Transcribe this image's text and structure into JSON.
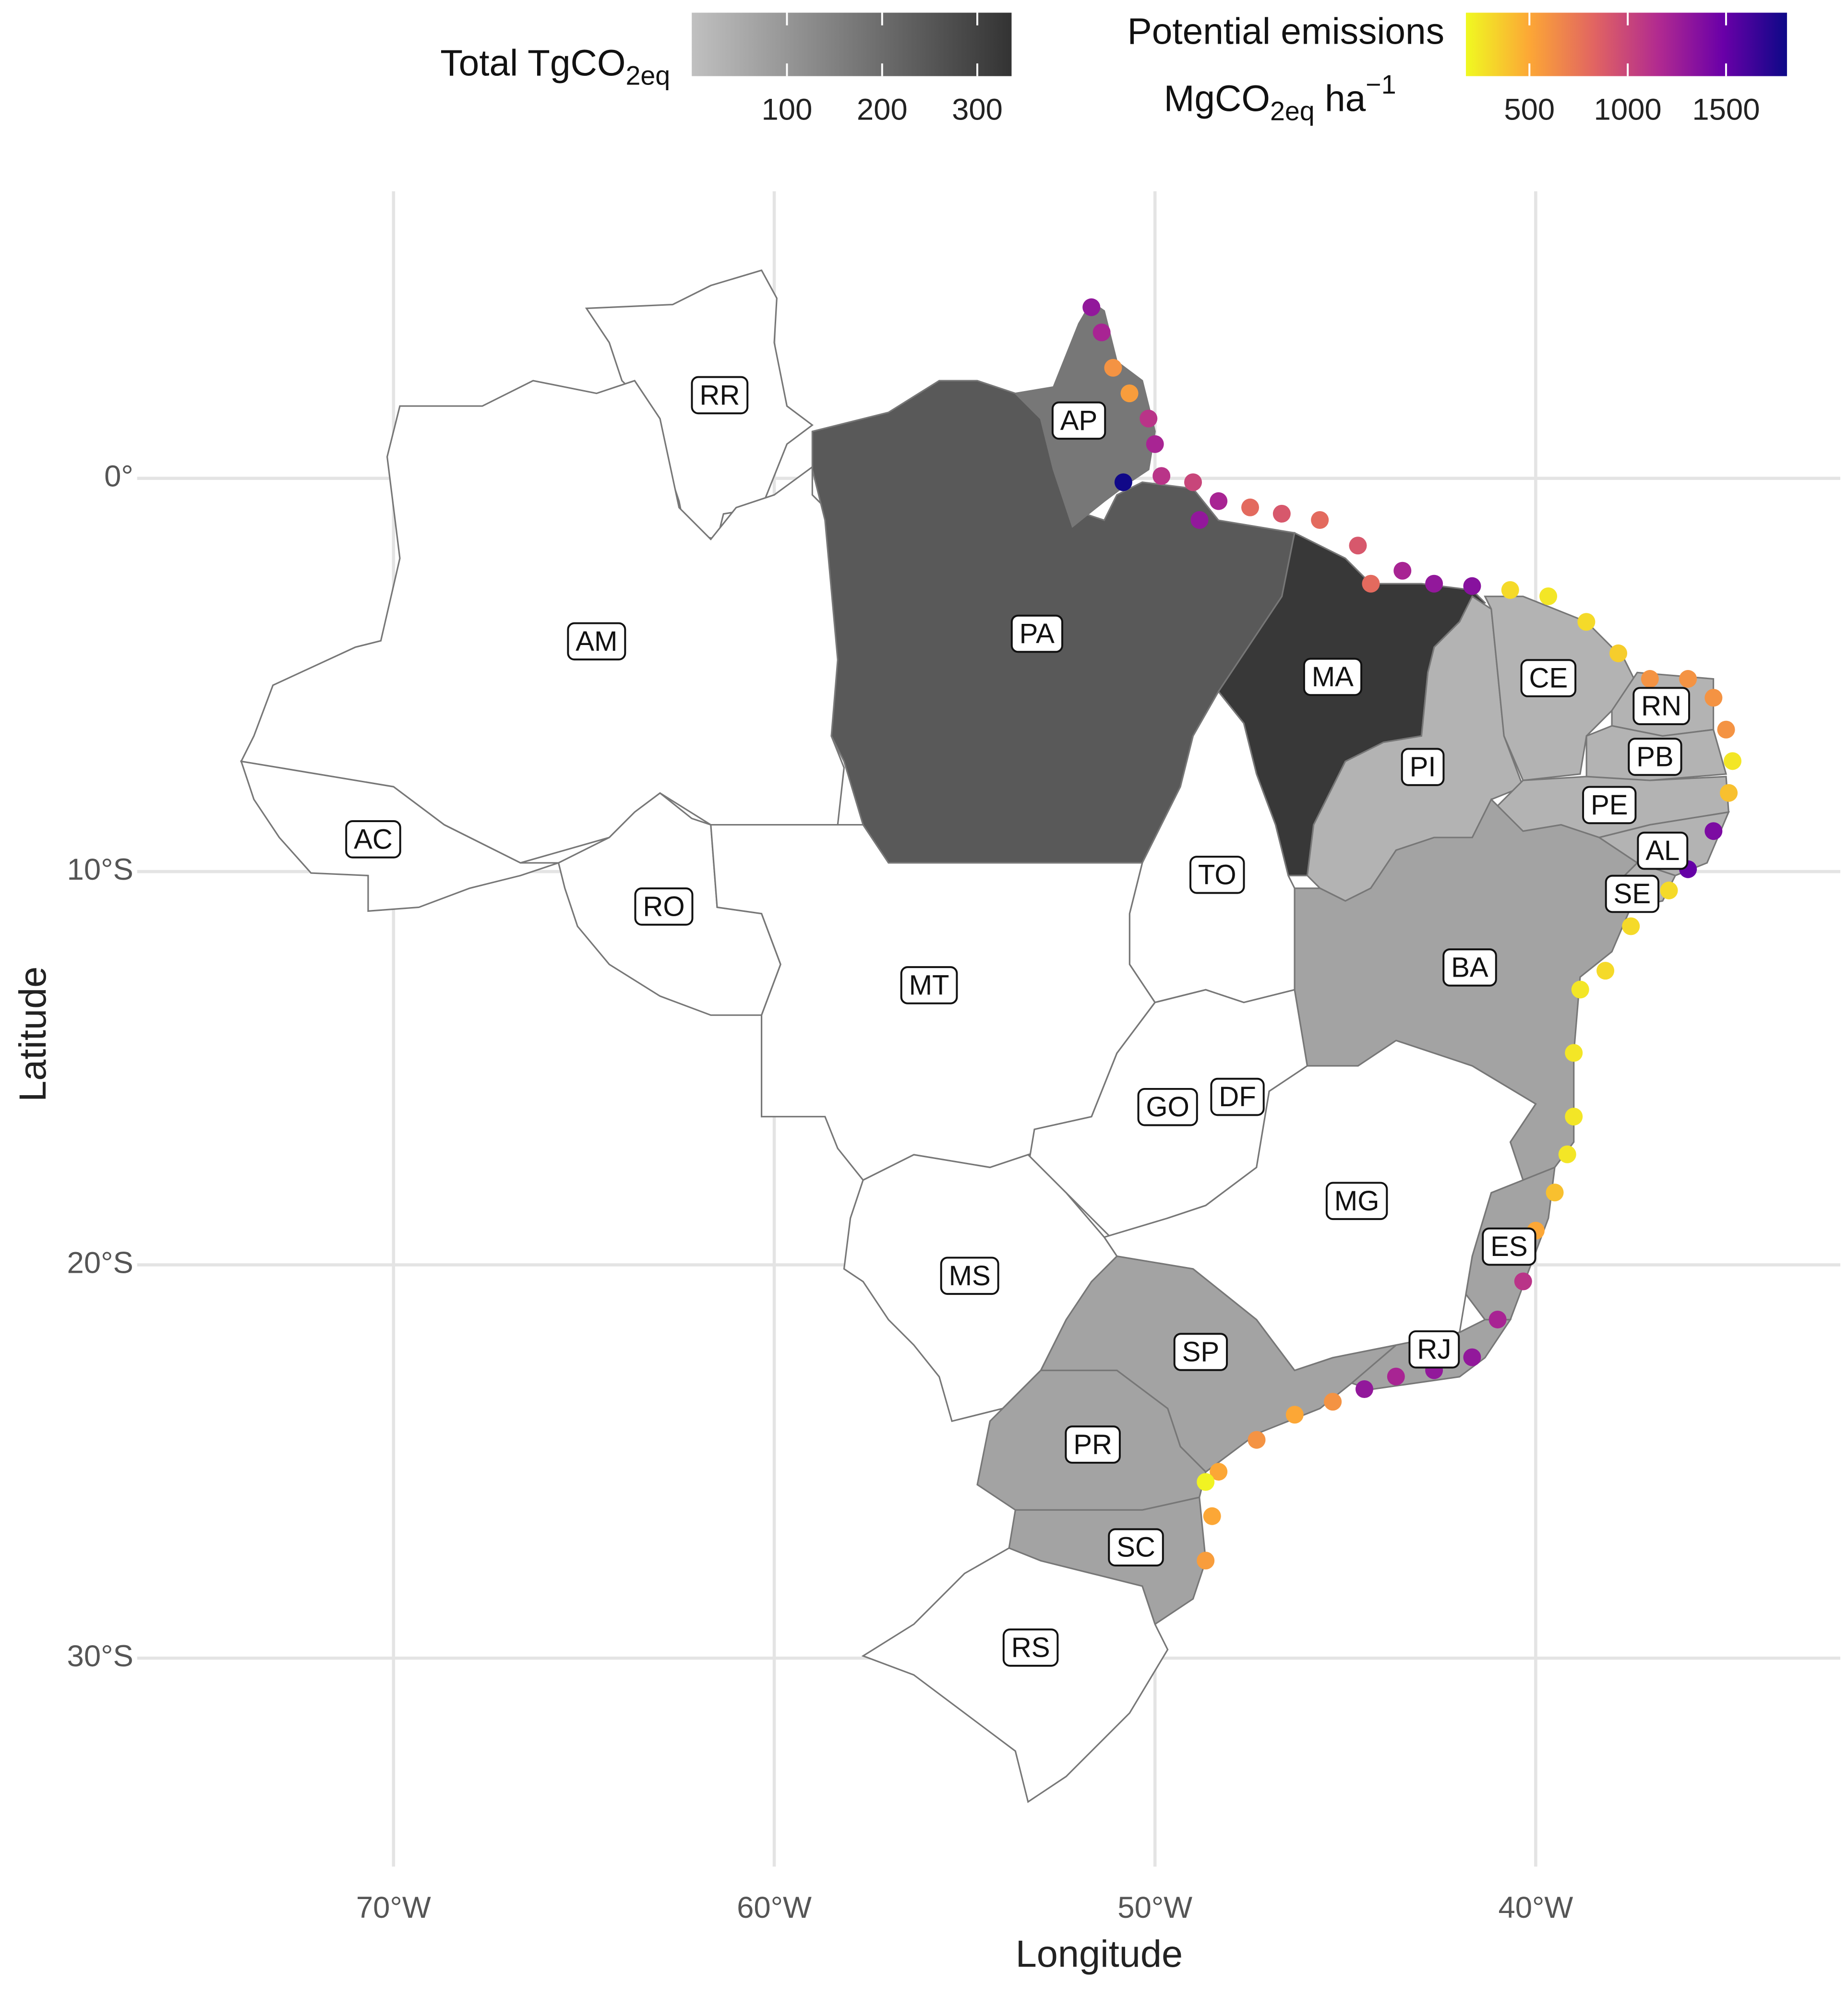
{
  "chart_data": {
    "type": "map",
    "x_label": "Longitude",
    "y_label": "Latitude",
    "xlim": [
      -77,
      -32
    ],
    "ylim": [
      -35.3,
      7.3
    ],
    "grid": true,
    "xticks": [
      {
        "value": -70,
        "label": "70°W"
      },
      {
        "value": -60,
        "label": "60°W"
      },
      {
        "value": -50,
        "label": "50°W"
      },
      {
        "value": -40,
        "label": "40°W"
      }
    ],
    "yticks": [
      {
        "value": 0,
        "label": "0°"
      },
      {
        "value": -10,
        "label": "10°S"
      },
      {
        "value": -20,
        "label": "20°S"
      },
      {
        "value": -30,
        "label": "30°S"
      }
    ],
    "fill_legend": {
      "title": {
        "text": "Total TgCO",
        "sub": "2eq"
      },
      "lim": [
        0,
        336
      ],
      "ticks": [
        100,
        200,
        300
      ],
      "colors": [
        "#c0c0c0",
        "#333333"
      ]
    },
    "color_legend": {
      "title": "Potential emissions",
      "unit": {
        "text": "MgCO",
        "sub": "2eq",
        "after": " ha",
        "sup": "−1"
      },
      "lim": [
        177,
        1810
      ],
      "ticks": [
        500,
        1000,
        1500
      ],
      "colors": [
        "#f0f921",
        "#fca636",
        "#e16462",
        "#b12a90",
        "#6a00a8",
        "#0d0887"
      ]
    },
    "states": {
      "labels": [
        "RR",
        "AM",
        "AC",
        "RO",
        "PA",
        "AP",
        "MA",
        "PI",
        "CE",
        "RN",
        "PB",
        "PE",
        "AL",
        "SE",
        "BA",
        "TO",
        "MT",
        "GO",
        "DF",
        "MG",
        "ES",
        "RJ",
        "SP",
        "MS",
        "PR",
        "SC",
        "RS"
      ],
      "values": [
        null,
        null,
        null,
        null,
        245,
        174,
        324,
        31,
        31,
        31,
        31,
        31,
        31,
        31,
        69,
        null,
        null,
        null,
        null,
        null,
        69,
        69,
        69,
        null,
        69,
        69,
        null
      ]
    },
    "points": {
      "x": [
        -51.67,
        -51.4,
        -51.1,
        -50.67,
        -50.17,
        -50.0,
        -50.83,
        -49.83,
        -49.0,
        -48.83,
        -48.33,
        -47.5,
        -46.67,
        -45.67,
        -44.67,
        -44.33,
        -43.5,
        -42.67,
        -41.67,
        -40.67,
        -39.67,
        -38.67,
        -37.83,
        -37.0,
        -36.0,
        -35.33,
        -35.0,
        -34.83,
        -34.93,
        -35.33,
        -36.0,
        -36.5,
        -37.5,
        -38.17,
        -38.83,
        -39.0,
        -39.0,
        -39.17,
        -39.5,
        -40.0,
        -40.33,
        -41.0,
        -41.67,
        -42.67,
        -43.67,
        -44.5,
        -45.33,
        -46.33,
        -47.33,
        -48.33,
        -48.67,
        -48.5,
        -48.67
      ],
      "y": [
        4.35,
        3.71,
        2.81,
        2.16,
        1.52,
        0.87,
        -0.1,
        0.06,
        -0.1,
        -1.06,
        -0.58,
        -0.74,
        -0.9,
        -1.06,
        -1.71,
        -2.68,
        -2.35,
        -2.68,
        -2.74,
        -2.84,
        -3.0,
        -3.65,
        -4.45,
        -5.1,
        -5.1,
        -5.58,
        -6.39,
        -7.19,
        -8.0,
        -8.97,
        -9.94,
        -10.48,
        -11.39,
        -12.52,
        -13.0,
        -14.61,
        -16.23,
        -17.19,
        -18.16,
        -19.13,
        -20.42,
        -21.39,
        -22.35,
        -22.68,
        -22.84,
        -23.16,
        -23.48,
        -23.81,
        -24.45,
        -25.26,
        -25.52,
        -26.39,
        -27.52
      ],
      "values": [
        1300,
        1200,
        600,
        550,
        1100,
        1200,
        1800,
        1100,
        1000,
        1300,
        1200,
        800,
        900,
        800,
        900,
        800,
        1200,
        1300,
        1350,
        300,
        250,
        300,
        350,
        600,
        600,
        600,
        600,
        250,
        400,
        1400,
        1500,
        300,
        300,
        300,
        250,
        250,
        250,
        250,
        400,
        500,
        1100,
        1200,
        1300,
        1300,
        1200,
        1300,
        600,
        500,
        600,
        500,
        200,
        500,
        550
      ]
    }
  }
}
